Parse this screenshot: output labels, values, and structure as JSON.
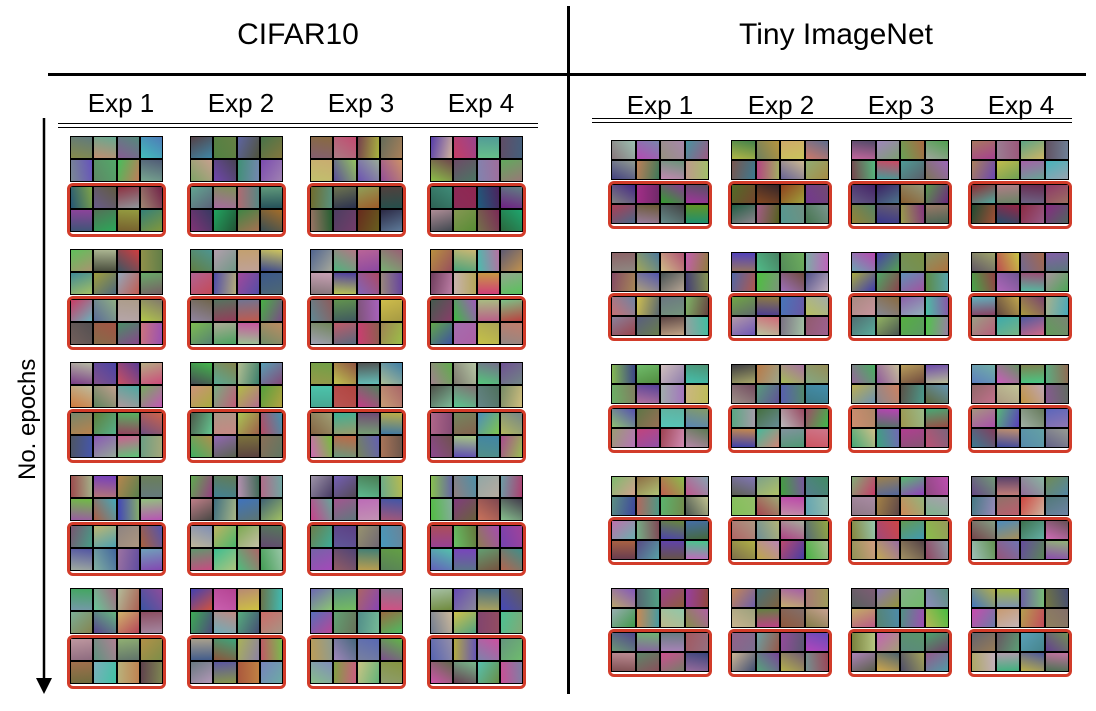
{
  "panels": [
    {
      "title": "CIFAR10",
      "experiments": [
        "Exp 1",
        "Exp 2",
        "Exp 3",
        "Exp 4"
      ],
      "rows": 5
    },
    {
      "title": "Tiny ImageNet",
      "experiments": [
        "Exp 1",
        "Exp 2",
        "Exp 3",
        "Exp 4"
      ],
      "rows": 5
    }
  ],
  "axis": {
    "ylabel": "No. epochs"
  },
  "colors": {
    "highlight": "#d23c2a",
    "rule": "#000000"
  }
}
